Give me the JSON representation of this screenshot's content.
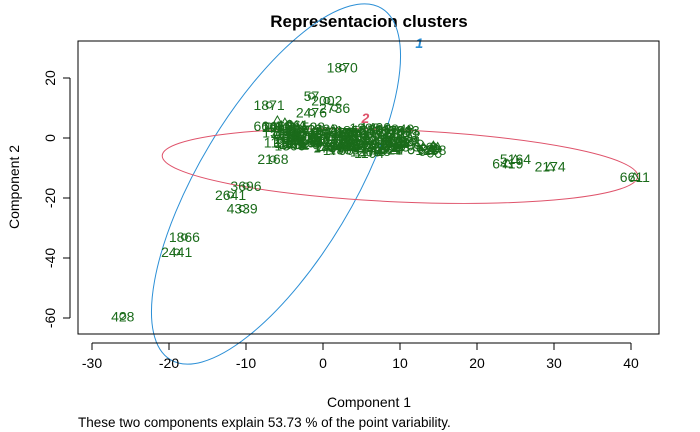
{
  "chart_data": {
    "type": "scatter",
    "title": "Representacion clusters",
    "xlabel": "Component 1",
    "ylabel": "Component 2",
    "footnote": "These two components explain 53.73 % of the point variability.",
    "xlim": [
      -33,
      43
    ],
    "ylim": [
      -65,
      32
    ],
    "xticks": [
      -30,
      -20,
      -10,
      0,
      10,
      20,
      30,
      40
    ],
    "yticks": [
      -60,
      -40,
      -20,
      0,
      20
    ],
    "grid": false,
    "point_color": "#1a6b1a",
    "labeled_points": [
      {
        "id": "1870",
        "x": 2.5,
        "y": 23.5,
        "cluster": 1
      },
      {
        "id": "57",
        "x": -1.5,
        "y": 14,
        "cluster": 1
      },
      {
        "id": "2002",
        "x": 0.5,
        "y": 12.5,
        "cluster": 1
      },
      {
        "id": "1871",
        "x": -7,
        "y": 11,
        "cluster": 1
      },
      {
        "id": "2736",
        "x": 1.5,
        "y": 10,
        "cluster": 1
      },
      {
        "id": "2476",
        "x": -1.5,
        "y": 8.5,
        "cluster": 1
      },
      {
        "id": "6641",
        "x": -7,
        "y": 4,
        "cluster": 1
      },
      {
        "id": "2168",
        "x": -6.5,
        "y": -7,
        "cluster": 1
      },
      {
        "id": "3696",
        "x": -10,
        "y": -16,
        "cluster": 1
      },
      {
        "id": "2641",
        "x": -12,
        "y": -19,
        "cluster": 1
      },
      {
        "id": "4339",
        "x": -10.5,
        "y": -23.5,
        "cluster": 1
      },
      {
        "id": "1866",
        "x": -18,
        "y": -33,
        "cluster": 1
      },
      {
        "id": "2441",
        "x": -19,
        "y": -38,
        "cluster": 1
      },
      {
        "id": "428",
        "x": -26,
        "y": -59.5,
        "cluster": 1
      },
      {
        "id": "1238",
        "x": 14,
        "y": -4,
        "cluster": 2
      },
      {
        "id": "5164",
        "x": 25,
        "y": -7,
        "cluster": 2
      },
      {
        "id": "6419",
        "x": 24,
        "y": -8.5,
        "cluster": 2
      },
      {
        "id": "2174",
        "x": 29.5,
        "y": -9.5,
        "cluster": 2
      },
      {
        "id": "6611",
        "x": 40.5,
        "y": -13,
        "cluster": 2
      }
    ],
    "clusters": [
      {
        "name": "1",
        "color": "#2b8fd6",
        "label_x": 12.5,
        "label_y": 30
      },
      {
        "name": "2",
        "color": "#df536b",
        "label_x": 5.5,
        "label_y": 5
      }
    ]
  }
}
